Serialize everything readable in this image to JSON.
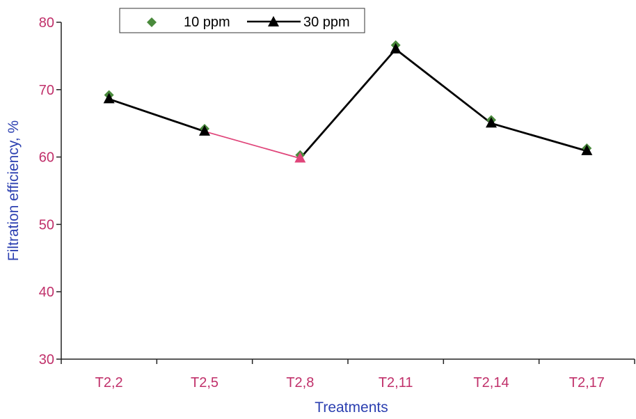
{
  "chart_data": {
    "type": "line",
    "title": "",
    "xlabel": "Treatments",
    "ylabel": "Filtration efficiency, %",
    "categories": [
      "T2,2",
      "T2,5",
      "T2,8",
      "T2,11",
      "T2,14",
      "T2,17"
    ],
    "ylim": [
      30,
      80
    ],
    "yticks": [
      "30",
      "40",
      "50",
      "60",
      "70",
      "80"
    ],
    "grid": false,
    "legend_position": "top-left",
    "series": [
      {
        "name": "10 ppm",
        "marker": "diamond",
        "line": false,
        "color": "#4a8a3c",
        "values": [
          69.2,
          64.2,
          60.3,
          76.6,
          65.5,
          61.3
        ]
      },
      {
        "name": "30 ppm",
        "marker": "triangle",
        "line": true,
        "color": "#000000",
        "values": [
          68.6,
          63.8,
          59.8,
          76.0,
          65.0,
          60.9
        ]
      }
    ],
    "highlight": {
      "series": 1,
      "segment_from": 1,
      "segment_to": 2,
      "color": "#e0457a"
    },
    "colors": {
      "axis_labels": "#c0306a",
      "axis_titles": "#2b3fb0",
      "axis_line": "#222222"
    }
  }
}
